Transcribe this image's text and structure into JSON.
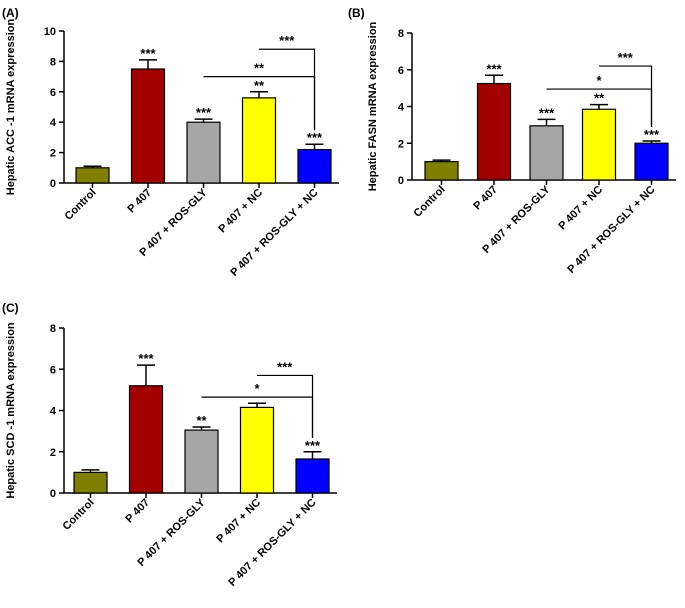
{
  "chart_data": [
    {
      "type": "bar",
      "panel_label": "(A)",
      "ylabel": "Hepatic ACC -1 mRNA expression",
      "ylim": [
        0,
        10
      ],
      "yticks": [
        0,
        2,
        4,
        6,
        8,
        10
      ],
      "categories": [
        "Control",
        "P 407",
        "P 407 + ROS-GLY",
        "P 407 + NC",
        "P 407 + ROS-GLY + NC"
      ],
      "values": [
        1.0,
        7.5,
        4.0,
        5.6,
        2.2
      ],
      "errors": [
        0.1,
        0.6,
        0.2,
        0.4,
        0.35
      ],
      "colors": [
        "#7f7f00",
        "#a30000",
        "#a6a6a6",
        "#ffff00",
        "#0000ff"
      ],
      "stars": [
        "",
        "***",
        "***",
        "**",
        "***"
      ],
      "brackets": [
        {
          "from": 2,
          "to": 4,
          "y": 7.0,
          "label": "**"
        },
        {
          "from": 3,
          "to": 4,
          "y": 8.8,
          "label": "***"
        }
      ]
    },
    {
      "type": "bar",
      "panel_label": "(B)",
      "ylabel": "Hepatic FASN mRNA expression",
      "ylim": [
        0,
        8
      ],
      "yticks": [
        0,
        2,
        4,
        6,
        8
      ],
      "categories": [
        "Control",
        "P 407",
        "P 407 + ROS-GLY",
        "P 407 + NC",
        "P 407 + ROS-GLY + NC"
      ],
      "values": [
        1.0,
        5.25,
        2.95,
        3.85,
        2.0
      ],
      "errors": [
        0.08,
        0.45,
        0.35,
        0.25,
        0.12
      ],
      "colors": [
        "#7f7f00",
        "#a30000",
        "#a6a6a6",
        "#ffff00",
        "#0000ff"
      ],
      "stars": [
        "",
        "***",
        "***",
        "**",
        "***"
      ],
      "brackets": [
        {
          "from": 2,
          "to": 4,
          "y": 4.95,
          "label": "*"
        },
        {
          "from": 3,
          "to": 4,
          "y": 6.2,
          "label": "***"
        }
      ]
    },
    {
      "type": "bar",
      "panel_label": "(C)",
      "ylabel": "Hepatic SCD -1 mRNA expression",
      "ylim": [
        0,
        8
      ],
      "yticks": [
        0,
        2,
        4,
        6,
        8
      ],
      "categories": [
        "Control",
        "P 407",
        "P 407 + ROS-GLY",
        "P 407 + NC",
        "P 407 + ROS-GLY + NC"
      ],
      "values": [
        1.0,
        5.2,
        3.05,
        4.15,
        1.65
      ],
      "errors": [
        0.12,
        1.0,
        0.15,
        0.2,
        0.35
      ],
      "colors": [
        "#7f7f00",
        "#a30000",
        "#a6a6a6",
        "#ffff00",
        "#0000ff"
      ],
      "stars": [
        "",
        "***",
        "**",
        "",
        "***"
      ],
      "brackets": [
        {
          "from": 2,
          "to": 4,
          "y": 4.65,
          "label": "*"
        },
        {
          "from": 3,
          "to": 4,
          "y": 5.7,
          "label": "***"
        }
      ]
    }
  ]
}
